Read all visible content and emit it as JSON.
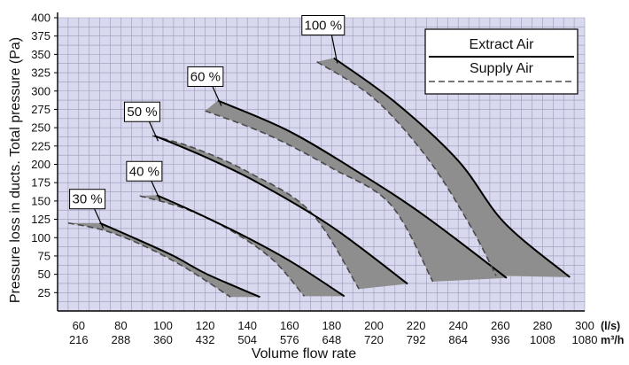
{
  "chart_data": {
    "type": "line",
    "title": "",
    "xlabel": "Volume flow rate",
    "ylabel": "Pressure loss in ducts. Total pressure (Pa)",
    "x_unit": "(l/s)",
    "x2_unit": "m³/h",
    "xlim": [
      50,
      300
    ],
    "ylim": [
      0,
      400
    ],
    "x_ticks": [
      60,
      80,
      100,
      120,
      140,
      160,
      180,
      200,
      220,
      240,
      260,
      280,
      300
    ],
    "x_tick_labels": [
      "60",
      "80",
      "100",
      "120",
      "140",
      "160",
      "180",
      "200",
      "220",
      "240",
      "260",
      "280",
      "300"
    ],
    "x2_tick_labels": [
      "216",
      "288",
      "360",
      "432",
      "504",
      "576",
      "648",
      "720",
      "792",
      "864",
      "936",
      "1008",
      "1080"
    ],
    "y_ticks": [
      25,
      50,
      75,
      100,
      125,
      150,
      175,
      200,
      225,
      250,
      275,
      300,
      325,
      350,
      375,
      400
    ],
    "y_tick_labels": [
      "25",
      "50",
      "75",
      "100",
      "125",
      "150",
      "175",
      "200",
      "225",
      "250",
      "275",
      "300",
      "325",
      "350",
      "375",
      "400"
    ],
    "grid": true,
    "legend": {
      "position": "top-right",
      "entries": [
        {
          "label": "Extract Air",
          "style": "solid"
        },
        {
          "label": "Supply Air",
          "style": "dashed"
        }
      ]
    },
    "series": [
      {
        "label": "30 %",
        "extract": [
          [
            70,
            120
          ],
          [
            86,
            100
          ],
          [
            105,
            75
          ],
          [
            121,
            50
          ],
          [
            146,
            19
          ]
        ],
        "supply": [
          [
            55,
            120
          ],
          [
            72,
            110
          ],
          [
            90,
            90
          ],
          [
            110,
            60
          ],
          [
            132,
            19
          ]
        ]
      },
      {
        "label": "40 %",
        "extract": [
          [
            97,
            158
          ],
          [
            115,
            135
          ],
          [
            140,
            100
          ],
          [
            162,
            65
          ],
          [
            186,
            20
          ]
        ],
        "supply": [
          [
            89,
            157
          ],
          [
            110,
            140
          ],
          [
            132,
            110
          ],
          [
            152,
            70
          ],
          [
            167,
            20
          ]
        ]
      },
      {
        "label": "50 %",
        "extract": [
          [
            96,
            239
          ],
          [
            120,
            210
          ],
          [
            145,
            175
          ],
          [
            180,
            115
          ],
          [
            216,
            37
          ]
        ],
        "supply": [
          [
            95,
            239
          ],
          [
            115,
            222
          ],
          [
            140,
            190
          ],
          [
            170,
            135
          ],
          [
            193,
            30
          ]
        ]
      },
      {
        "label": "60 %",
        "extract": [
          [
            126,
            287
          ],
          [
            160,
            245
          ],
          [
            195,
            185
          ],
          [
            224,
            130
          ],
          [
            263,
            45
          ]
        ],
        "supply": [
          [
            120,
            273
          ],
          [
            150,
            240
          ],
          [
            180,
            195
          ],
          [
            208,
            145
          ],
          [
            228,
            40
          ]
        ]
      },
      {
        "label": "100 %",
        "extract": [
          [
            181,
            345
          ],
          [
            210,
            285
          ],
          [
            240,
            205
          ],
          [
            262,
            120
          ],
          [
            293,
            46
          ]
        ],
        "supply": [
          [
            173,
            340
          ],
          [
            200,
            290
          ],
          [
            225,
            210
          ],
          [
            245,
            120
          ],
          [
            258,
            48
          ]
        ]
      }
    ]
  },
  "colors": {
    "background": "#d8d8ee",
    "band": "#8e8e8e"
  }
}
